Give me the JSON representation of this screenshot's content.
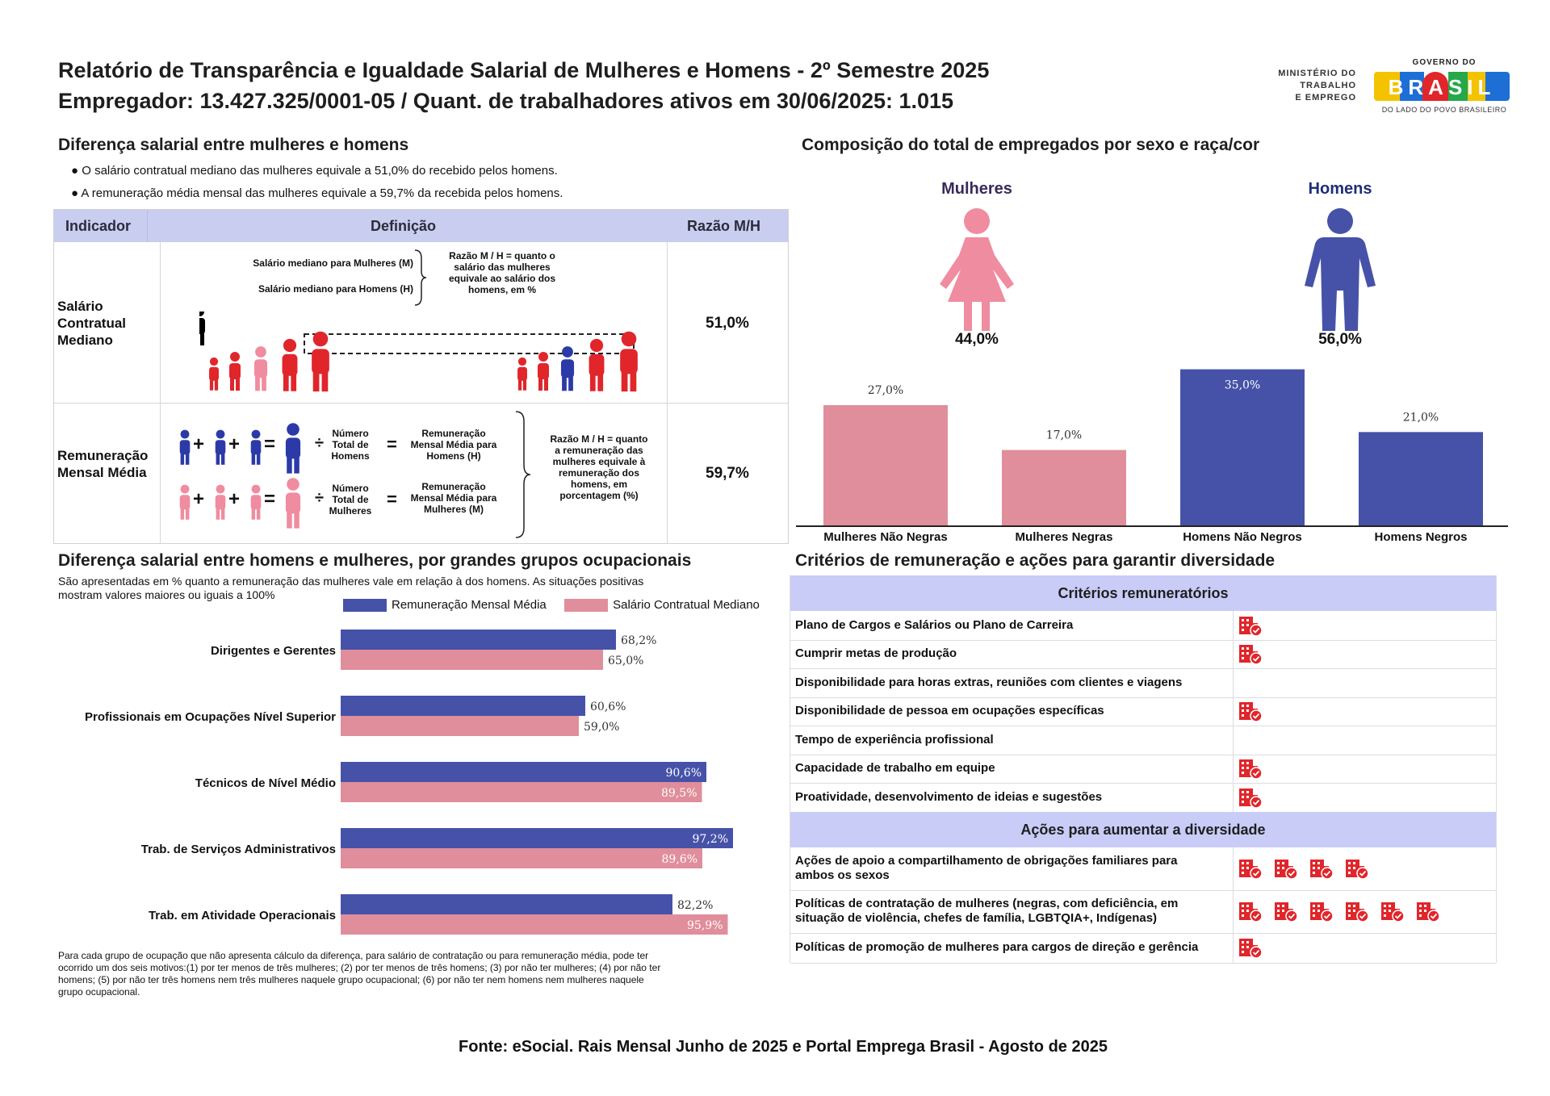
{
  "header": {
    "title_line1": "Relatório de Transparência e Igualdade Salarial de Mulheres e Homens - 2º Semestre 2025",
    "title_line2": "Empregador: 13.427.325/0001-05 / Quant. de trabalhadores ativos em 30/06/2025: 1.015",
    "ministry_logo": [
      "MINISTÉRIO DO",
      "TRABALHO",
      "E EMPREGO"
    ],
    "gov_logo_top": "GOVERNO DO",
    "gov_logo_main": "BRASIL",
    "gov_logo_bottom": "DO LADO DO POVO BRASILEIRO"
  },
  "wage_gap": {
    "title": "Diferença salarial entre mulheres e homens",
    "bullets": [
      "O salário contratual mediano das mulheres equivale a 51,0% do recebido pelos homens.",
      "A remuneração média mensal das mulheres equivale a 59,7% da recebida pelos homens."
    ],
    "table": {
      "headers": [
        "Indicador",
        "Definição",
        "Razão M/H"
      ],
      "rows": [
        {
          "indicator_lines": [
            "Salário",
            "Contratual",
            "Mediano"
          ],
          "def_labels": [
            "Salário mediano para Mulheres (M)",
            "Salário mediano para Homens (H)"
          ],
          "def_note_lines": [
            "Razão M / H = quanto o",
            "salário das mulheres",
            "equivale ao salário dos",
            "homens, em %"
          ],
          "ratio": "51,0%"
        },
        {
          "indicator_lines": [
            "Remuneração",
            "Mensal Média"
          ],
          "def_total_men": [
            "Número",
            "Total de",
            "Homens"
          ],
          "def_avg_men": [
            "Remuneração",
            "Mensal Média para",
            "Homens (H)"
          ],
          "def_total_women": [
            "Número",
            "Total de",
            "Mulheres"
          ],
          "def_avg_women": [
            "Remuneração",
            "Mensal Média para",
            "Mulheres (M)"
          ],
          "def_note_lines": [
            "Razão M / H = quanto",
            "a remuneração das",
            "mulheres equivale à",
            "remuneração dos",
            "homens, em",
            "porcentagem (%)"
          ],
          "ratio": "59,7%"
        }
      ]
    }
  },
  "composition": {
    "title": "Composição do total de empregados por sexo e raça/cor",
    "women_label": "Mulheres",
    "men_label": "Homens",
    "women_pct": "44,0%",
    "men_pct": "56,0%",
    "colors": {
      "women": "#e08e9b",
      "men": "#4652a8"
    }
  },
  "occupation": {
    "title": "Diferença salarial entre homens e mulheres, por grandes grupos ocupacionais",
    "subtitle_line1": "São apresentadas em % quanto a remuneração das mulheres vale em relação à dos homens. As situações positivas",
    "subtitle_line2": "mostram valores maiores ou iguais a 100%",
    "footnote_lines": [
      "Para cada grupo de ocupação que não apresenta cálculo da diferença, para salário de contratação ou para remuneração média, pode ter",
      "ocorrido um dos seis motivos:(1) por ter menos de três mulheres; (2) por ter menos de três homens; (3) por não ter mulheres; (4) por não ter",
      "homens; (5) por não ter três homens nem três mulheres naquele grupo ocupacional; (6) por não ter nem homens nem mulheres naquele",
      "grupo ocupacional."
    ]
  },
  "chart_data": [
    {
      "type": "bar",
      "categories": [
        "Mulheres Não Negras",
        "Mulheres Negras",
        "Homens Não Negros",
        "Homens Negros"
      ],
      "values": [
        27.0,
        17.0,
        35.0,
        21.0
      ],
      "labels": [
        "27,0%",
        "17,0%",
        "35,0%",
        "21,0%"
      ],
      "colors": [
        "#e08e9b",
        "#e08e9b",
        "#4652a8",
        "#4652a8"
      ],
      "ylim": [
        0,
        36
      ]
    },
    {
      "type": "bar",
      "orientation": "horizontal",
      "categories": [
        "Dirigentes e Gerentes",
        "Profissionais em Ocupações Nível Superior",
        "Técnicos de Nível Médio",
        "Trab. de Serviços Administrativos",
        "Trab. em Atividade Operacionais"
      ],
      "series": [
        {
          "name": "Remuneração Mensal Média",
          "color": "#4652a8",
          "values": [
            68.2,
            60.6,
            90.6,
            97.2,
            82.2
          ],
          "labels": [
            "68,2%",
            "60,6%",
            "90,6%",
            "97,2%",
            "82,2%"
          ]
        },
        {
          "name": "Salário Contratual Mediano",
          "color": "#e08e9b",
          "values": [
            65.0,
            59.0,
            89.5,
            89.6,
            95.9
          ],
          "labels": [
            "65,0%",
            "59,0%",
            "89,5%",
            "89,6%",
            "95,9%"
          ]
        }
      ],
      "legend": "top-right",
      "xlim": [
        0,
        100
      ]
    }
  ],
  "criteria": {
    "title": "Critérios de remuneração e ações para garantir diversidade",
    "head1": "Critérios remuneratórios",
    "items": [
      {
        "label_lines": [
          "Plano de Cargos e Salários ou Plano de Carreira"
        ],
        "icons": 1
      },
      {
        "label_lines": [
          "Cumprir metas de produção"
        ],
        "icons": 1
      },
      {
        "label_lines": [
          "Disponibilidade para horas extras, reuniões com clientes e viagens"
        ],
        "icons": 0
      },
      {
        "label_lines": [
          "Disponibilidade de pessoa em ocupações específicas"
        ],
        "icons": 1
      },
      {
        "label_lines": [
          "Tempo de experiência profissional"
        ],
        "icons": 0
      },
      {
        "label_lines": [
          "Capacidade de trabalho em equipe"
        ],
        "icons": 1
      },
      {
        "label_lines": [
          "Proatividade, desenvolvimento de ideias e sugestões"
        ],
        "icons": 1
      }
    ],
    "head2": "Ações para aumentar a diversidade",
    "actions": [
      {
        "label_lines": [
          "Ações de apoio a compartilhamento de obrigações familiares para",
          "ambos os sexos"
        ],
        "icons": 4
      },
      {
        "label_lines": [
          "Políticas de contratação de mulheres (negras, com deficiência, em",
          "situação de violência, chefes de família, LGBTQIA+, Indígenas)"
        ],
        "icons": 6
      },
      {
        "label_lines": [
          "Políticas de promoção de mulheres para cargos de direção e gerência"
        ],
        "icons": 1
      }
    ],
    "icon_name": "building-check-icon",
    "icon_color": "#e0262b"
  },
  "footer": {
    "source": "Fonte: eSocial. Rais Mensal Junho de 2025 e Portal Emprega Brasil - Agosto de 2025"
  }
}
